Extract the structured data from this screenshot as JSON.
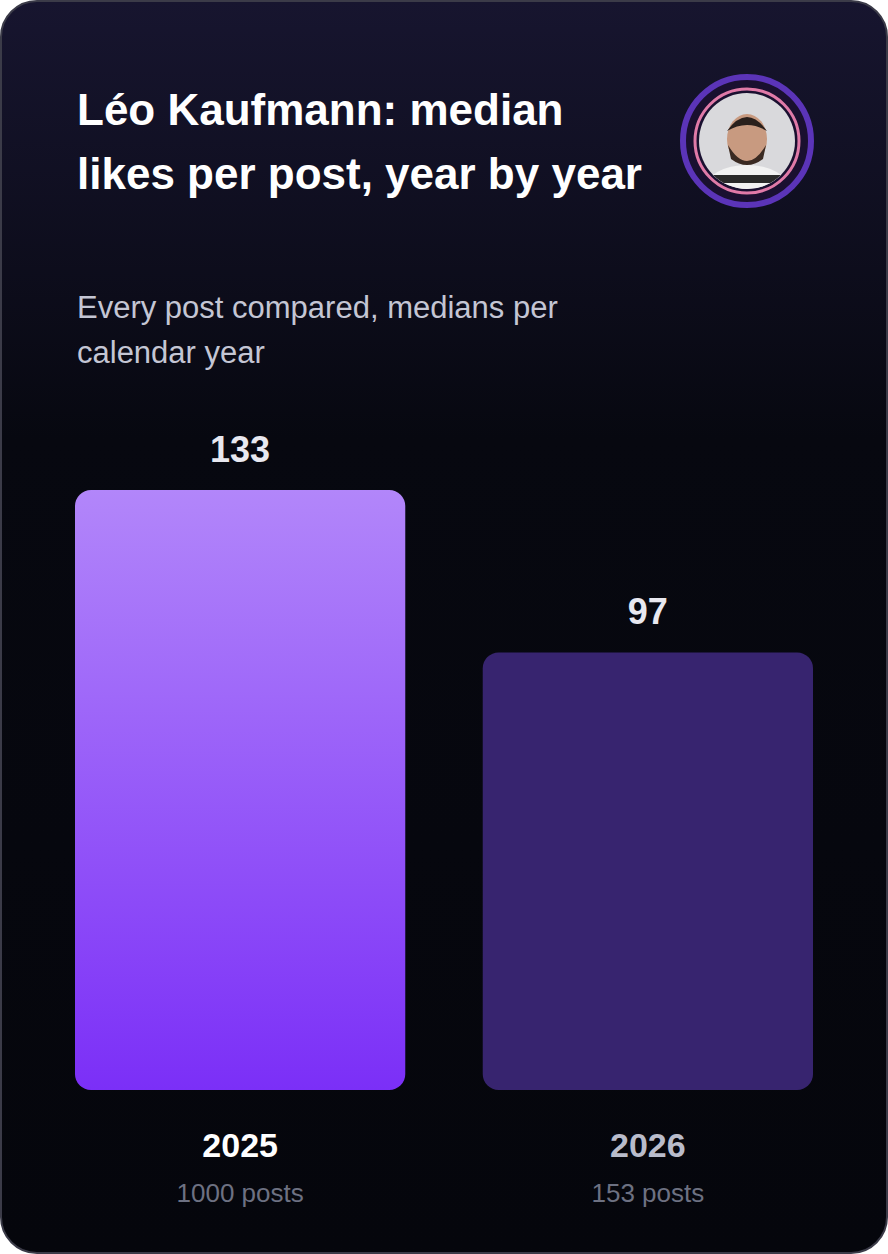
{
  "chart_data": {
    "type": "bar",
    "title": "Léo Kaufmann: median likes per post, year by year",
    "subtitle": "Every post compared, medians per calendar year",
    "categories": [
      "2025",
      "2026"
    ],
    "values": [
      133,
      97
    ],
    "post_labels": [
      "1000 posts",
      "153 posts"
    ],
    "colors": [
      "#7b2ff7",
      "#37246f"
    ],
    "data_labels": true,
    "tick_labels": "x",
    "grid": false
  }
}
